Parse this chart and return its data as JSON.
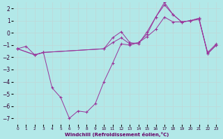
{
  "background_color": "#b2e8e8",
  "grid_color": "#c0d8d8",
  "line_color": "#993399",
  "xlabel": "Windchill (Refroidissement éolien,°C)",
  "ylim": [
    -7.5,
    2.5
  ],
  "xlim": [
    -0.5,
    23.5
  ],
  "yticks": [
    -7,
    -6,
    -5,
    -4,
    -3,
    -2,
    -1,
    0,
    1,
    2
  ],
  "xticks": [
    0,
    1,
    2,
    3,
    4,
    5,
    6,
    7,
    8,
    9,
    10,
    11,
    12,
    13,
    14,
    15,
    16,
    17,
    18,
    19,
    20,
    21,
    22,
    23
  ],
  "series": [
    {
      "x": [
        0,
        1,
        2,
        3,
        4,
        5,
        6,
        7,
        8,
        9,
        10,
        11,
        12,
        13,
        14,
        15,
        16,
        17,
        18,
        19,
        20,
        21,
        22,
        23
      ],
      "y": [
        -1.3,
        -1.1,
        -1.8,
        -1.6,
        -4.5,
        -5.3,
        -7.0,
        -6.4,
        -6.5,
        -5.8,
        -4.0,
        -2.5,
        -0.9,
        -1.0,
        -0.8,
        -0.3,
        0.3,
        1.3,
        0.9,
        0.9,
        1.0,
        1.1,
        -1.6,
        -0.9
      ]
    },
    {
      "x": [
        0,
        2,
        3,
        10,
        11,
        12,
        13,
        14,
        15,
        16,
        17,
        18,
        19,
        20,
        21,
        22,
        23
      ],
      "y": [
        -1.3,
        -1.8,
        -1.6,
        -1.3,
        -0.8,
        -0.4,
        -0.9,
        -0.8,
        -0.1,
        1.3,
        2.3,
        1.5,
        0.9,
        1.0,
        1.2,
        -1.7,
        -1.0
      ]
    },
    {
      "x": [
        0,
        2,
        3,
        10,
        11,
        12,
        13,
        14,
        15,
        16,
        17,
        18,
        19,
        20,
        21,
        22,
        23
      ],
      "y": [
        -1.3,
        -1.8,
        -1.6,
        -1.3,
        -0.4,
        0.1,
        -0.8,
        -0.9,
        0.1,
        1.3,
        2.5,
        1.5,
        0.9,
        1.0,
        1.2,
        -1.7,
        -1.0
      ]
    }
  ]
}
